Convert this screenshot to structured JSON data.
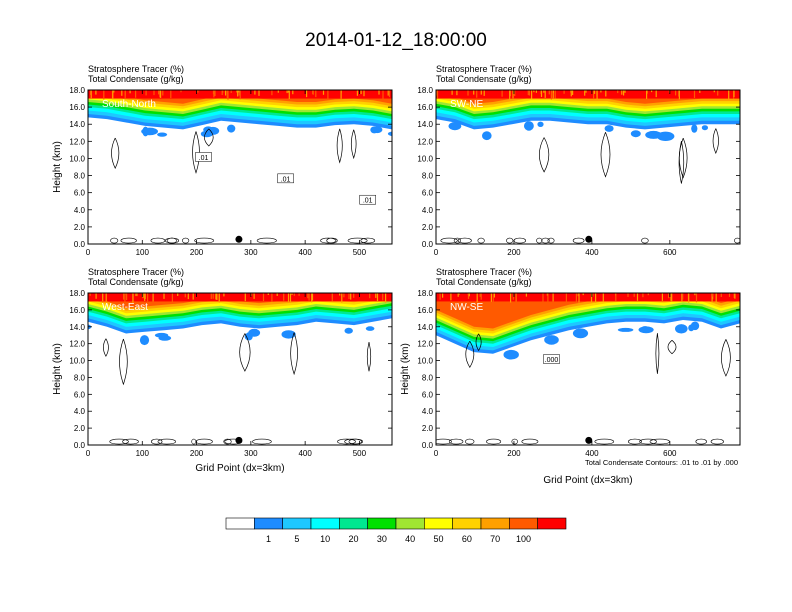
{
  "title": "2014-01-12_18:00:00",
  "chart_data": {
    "type": "heatmap",
    "title": "2014-01-12_18:00:00",
    "colorbar": {
      "labels": [
        "1",
        "5",
        "10",
        "20",
        "30",
        "40",
        "50",
        "60",
        "70",
        "100"
      ],
      "colors": [
        "#ffffff",
        "#1e8cff",
        "#1ec8ff",
        "#00ffff",
        "#00e890",
        "#00e000",
        "#a0e632",
        "#ffff00",
        "#ffd200",
        "#ffa000",
        "#ff5a00",
        "#ff0000"
      ]
    },
    "panels": [
      {
        "id": "south-north",
        "label": "South-North",
        "line1": "Stratosphere Tracer   (%)",
        "line2": "Total Condensate   (g/kg)",
        "xlim": [
          0,
          560
        ],
        "xticks": [
          0,
          100,
          200,
          300,
          400,
          500
        ],
        "ylim": [
          0,
          18
        ],
        "yticks": [
          "0.0",
          "2.0",
          "4.0",
          "6.0",
          "8.0",
          "10.0",
          "12.0",
          "14.0",
          "16.0",
          "18.0"
        ],
        "ylabel": "Height (km)",
        "xlabel": "",
        "marker_x": 278,
        "tracer_bottom_km": [
          14.8,
          14.6,
          14.2,
          13.8,
          13.6,
          13.4,
          13.9,
          14.4,
          14.2,
          14.0,
          13.8,
          13.6,
          13.6,
          13.9,
          14.0,
          13.8,
          13.4
        ],
        "contour_labels": [
          ".01",
          ".01",
          ".01"
        ],
        "footnote": ""
      },
      {
        "id": "sw-ne",
        "label": "SW-NE",
        "line1": "Stratosphere Tracer   (%)",
        "line2": "Total Condensate   (g/kg)",
        "xlim": [
          0,
          780
        ],
        "xticks": [
          0,
          200,
          400,
          600
        ],
        "ylim": [
          0,
          18
        ],
        "yticks": [
          "0.0",
          "2.0",
          "4.0",
          "6.0",
          "8.0",
          "10.0",
          "12.0",
          "14.0",
          "16.0",
          "18.0"
        ],
        "ylabel": "",
        "xlabel": "",
        "marker_x": 392,
        "tracer_bottom_km": [
          14.6,
          14.2,
          13.4,
          13.6,
          14.0,
          14.4,
          14.4,
          14.2,
          14.0,
          14.0,
          13.6,
          13.4,
          13.6,
          13.8,
          14.0,
          14.0,
          14.0
        ],
        "contour_labels": [],
        "footnote": ""
      },
      {
        "id": "west-east",
        "label": "West-East",
        "line1": "Stratosphere Tracer   (%)",
        "line2": "Total Condensate   (g/kg)",
        "xlim": [
          0,
          560
        ],
        "xticks": [
          0,
          100,
          200,
          300,
          400,
          500
        ],
        "ylim": [
          0,
          18
        ],
        "yticks": [
          "0.0",
          "2.0",
          "4.0",
          "6.0",
          "8.0",
          "10.0",
          "12.0",
          "14.0",
          "16.0",
          "18.0"
        ],
        "ylabel": "Height (km)",
        "xlabel": "Grid Point (dx=3km)",
        "marker_x": 278,
        "tracer_bottom_km": [
          14.6,
          14.0,
          13.2,
          13.4,
          13.6,
          13.8,
          14.2,
          14.4,
          14.0,
          13.8,
          14.0,
          14.2,
          14.6,
          14.4,
          14.2,
          14.6,
          15.0
        ],
        "contour_labels": [],
        "footnote": ""
      },
      {
        "id": "nw-se",
        "label": "NW-SE",
        "line1": "Stratosphere Tracer   (%)",
        "line2": "Total Condensate   (g/kg)",
        "xlim": [
          0,
          780
        ],
        "xticks": [
          0,
          200,
          400,
          600
        ],
        "ylim": [
          0,
          18
        ],
        "yticks": [
          "0.0",
          "2.0",
          "4.0",
          "6.0",
          "8.0",
          "10.0",
          "12.0",
          "14.0",
          "16.0",
          "18.0"
        ],
        "ylabel": "Height (km)",
        "xlabel": "Grid Point (dx=3km)",
        "marker_x": 392,
        "tracer_bottom_km": [
          13.0,
          12.0,
          11.0,
          10.8,
          11.6,
          12.4,
          13.0,
          13.6,
          14.0,
          14.4,
          14.6,
          14.6,
          14.4,
          14.8,
          14.6,
          13.8,
          14.4
        ],
        "contour_labels": [
          ".000"
        ],
        "footnote": "Total Condensate Contours: .01 to .01 by .000"
      }
    ]
  }
}
